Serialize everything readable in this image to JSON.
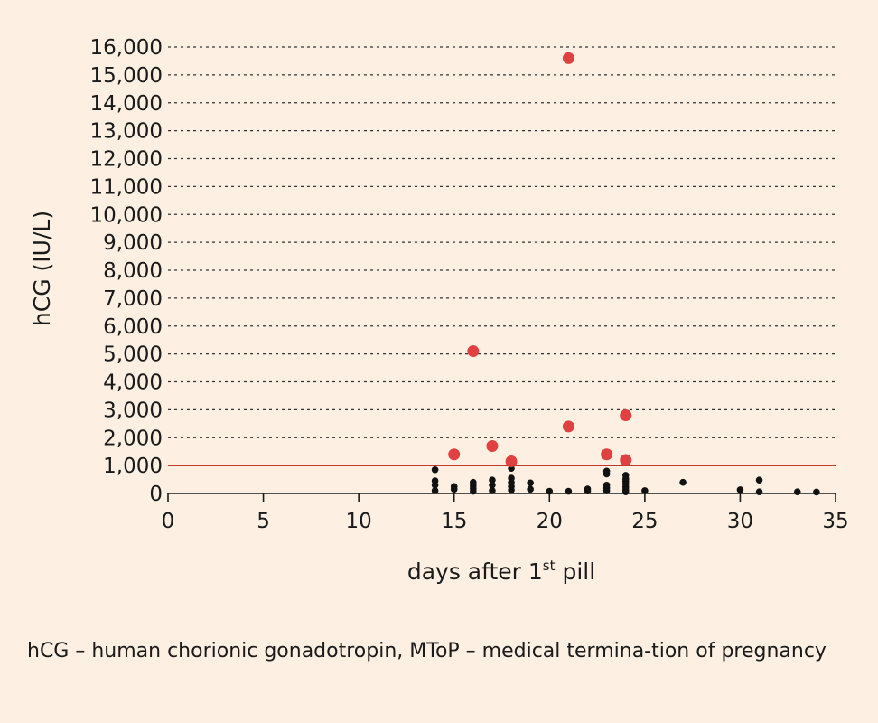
{
  "chart_data": {
    "type": "scatter",
    "xlabel": "days after 1st pill",
    "xlabel_parts": {
      "pre": "days after 1",
      "sup": "st",
      "post": " pill"
    },
    "ylabel": "hCG (IU/L)",
    "xlim": [
      0,
      35
    ],
    "ylim": [
      0,
      16000
    ],
    "x_ticks": [
      0,
      5,
      10,
      15,
      20,
      25,
      30,
      35
    ],
    "y_ticks": [
      0,
      1000,
      2000,
      3000,
      4000,
      5000,
      6000,
      7000,
      8000,
      9000,
      10000,
      11000,
      12000,
      13000,
      14000,
      15000,
      16000
    ],
    "y_tick_labels": [
      "0",
      "1,000",
      "2,000",
      "3,000",
      "4,000",
      "5,000",
      "6,000",
      "7,000",
      "8,000",
      "9,000",
      "10,000",
      "11,000",
      "12,000",
      "13,000",
      "14,000",
      "15,000",
      "16,000"
    ],
    "grid": "horizontal-dashed",
    "reference_line": {
      "y": 1000,
      "color": "#c0392b"
    },
    "series": [
      {
        "color": "#e04040",
        "marker": "large",
        "points": [
          [
            15,
            1400
          ],
          [
            16,
            5100
          ],
          [
            17,
            1700
          ],
          [
            18,
            1150
          ],
          [
            21,
            15600
          ],
          [
            21,
            2400
          ],
          [
            23,
            1400
          ],
          [
            24,
            2800
          ],
          [
            24,
            1200
          ]
        ]
      },
      {
        "color": "#111111",
        "marker": "small",
        "points": [
          [
            14,
            850
          ],
          [
            14,
            450
          ],
          [
            14,
            300
          ],
          [
            14,
            100
          ],
          [
            15,
            250
          ],
          [
            15,
            150
          ],
          [
            16,
            400
          ],
          [
            16,
            280
          ],
          [
            16,
            180
          ],
          [
            16,
            80
          ],
          [
            17,
            480
          ],
          [
            17,
            300
          ],
          [
            17,
            100
          ],
          [
            18,
            900
          ],
          [
            18,
            550
          ],
          [
            18,
            400
          ],
          [
            18,
            250
          ],
          [
            18,
            120
          ],
          [
            19,
            380
          ],
          [
            19,
            150
          ],
          [
            20,
            80
          ],
          [
            21,
            80
          ],
          [
            22,
            160
          ],
          [
            22,
            90
          ],
          [
            23,
            800
          ],
          [
            23,
            700
          ],
          [
            23,
            300
          ],
          [
            23,
            200
          ],
          [
            23,
            100
          ],
          [
            24,
            650
          ],
          [
            24,
            520
          ],
          [
            24,
            430
          ],
          [
            24,
            330
          ],
          [
            24,
            230
          ],
          [
            24,
            130
          ],
          [
            24,
            60
          ],
          [
            25,
            100
          ],
          [
            27,
            400
          ],
          [
            30,
            130
          ],
          [
            31,
            480
          ],
          [
            31,
            60
          ],
          [
            33,
            60
          ],
          [
            34,
            50
          ]
        ]
      }
    ]
  },
  "caption": "hCG – human chorionic gonadotropin, MToP – medical termina-tion of pregnancy"
}
